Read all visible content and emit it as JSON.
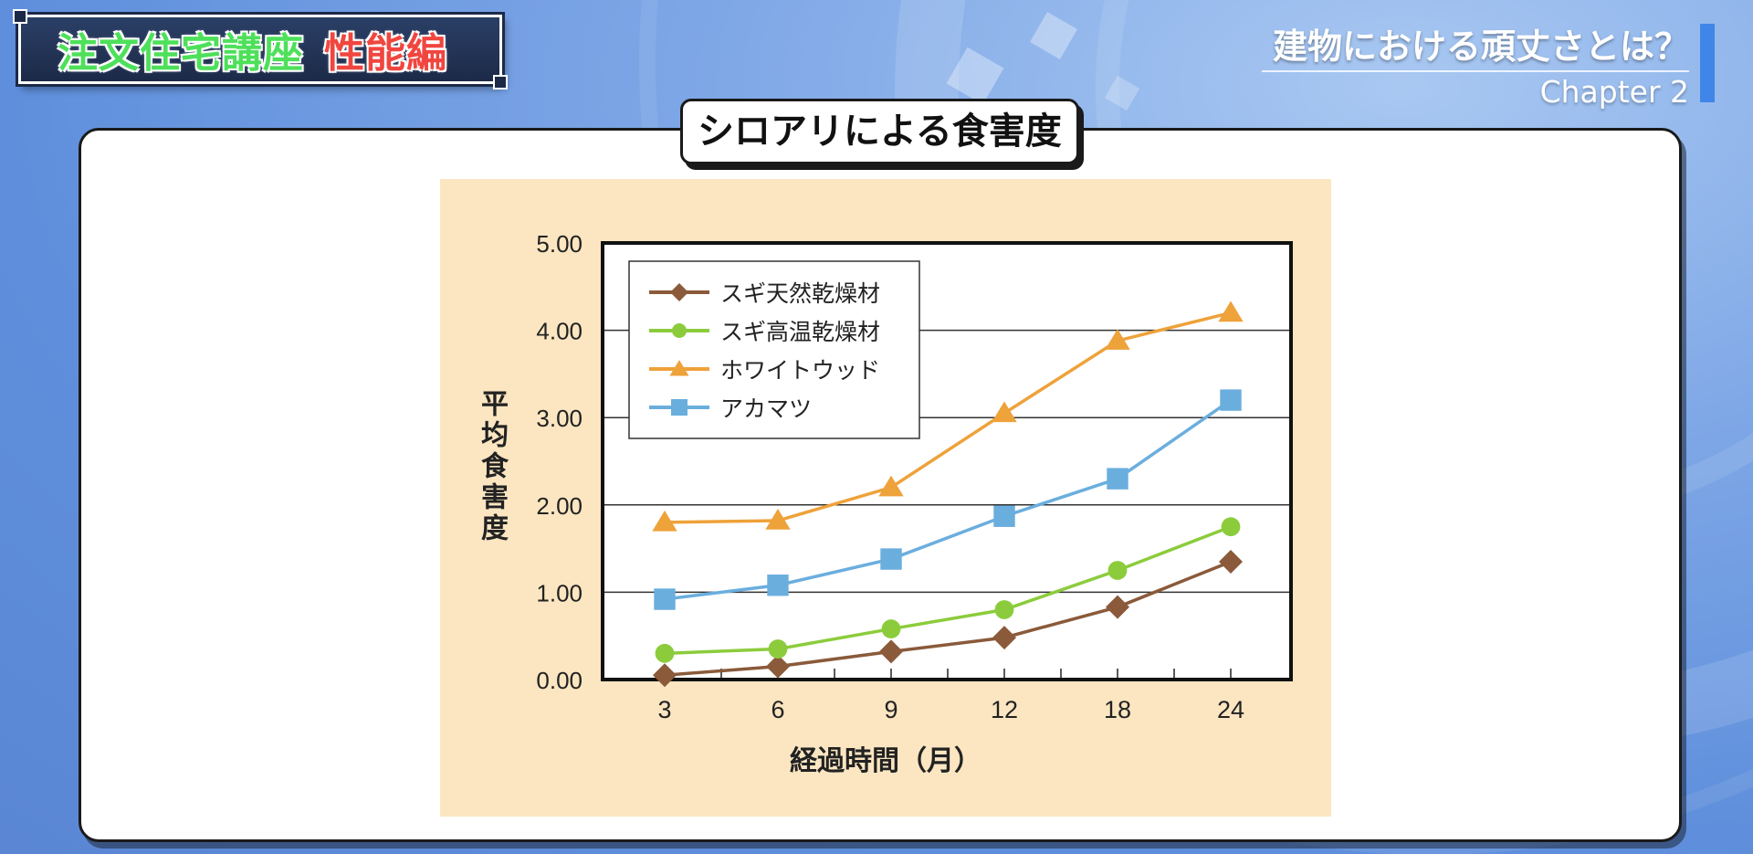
{
  "header": {
    "series_part1": "注文住宅講座",
    "series_part2": "性能編",
    "chapter_title": "建物における頑丈さとは？",
    "chapter_sub": "Chapter 2"
  },
  "panel": {
    "heading": "シロアリによる食害度"
  },
  "colors": {
    "sugi_natural": "#8a5a3a",
    "sugi_hightemp": "#8ccc3c",
    "white_wood": "#eea23a",
    "akamatsu": "#6aaede",
    "chart_bg": "#fbe6c1"
  },
  "chart_data": {
    "type": "line",
    "title": "シロアリによる食害度",
    "xlabel": "経過時間（月）",
    "ylabel": "平均食害度",
    "categories": [
      "3",
      "6",
      "9",
      "12",
      "18",
      "24"
    ],
    "ylim": [
      0,
      5
    ],
    "yticks": [
      "0.00",
      "1.00",
      "2.00",
      "3.00",
      "4.00",
      "5.00"
    ],
    "grid": true,
    "legend": "top-left",
    "series": [
      {
        "name": "スギ天然乾燥材",
        "marker": "diamond",
        "color": "#8a5a3a",
        "values": [
          0.05,
          0.15,
          0.32,
          0.48,
          0.83,
          1.35
        ]
      },
      {
        "name": "スギ高温乾燥材",
        "marker": "circle",
        "color": "#8ccc3c",
        "values": [
          0.3,
          0.35,
          0.58,
          0.8,
          1.25,
          1.75
        ]
      },
      {
        "name": "ホワイトウッド",
        "marker": "triangle",
        "color": "#eea23a",
        "values": [
          1.8,
          1.82,
          2.2,
          3.05,
          3.88,
          4.2
        ]
      },
      {
        "name": "アカマツ",
        "marker": "square",
        "color": "#6aaede",
        "values": [
          0.92,
          1.08,
          1.38,
          1.87,
          2.3,
          3.2
        ]
      }
    ]
  }
}
